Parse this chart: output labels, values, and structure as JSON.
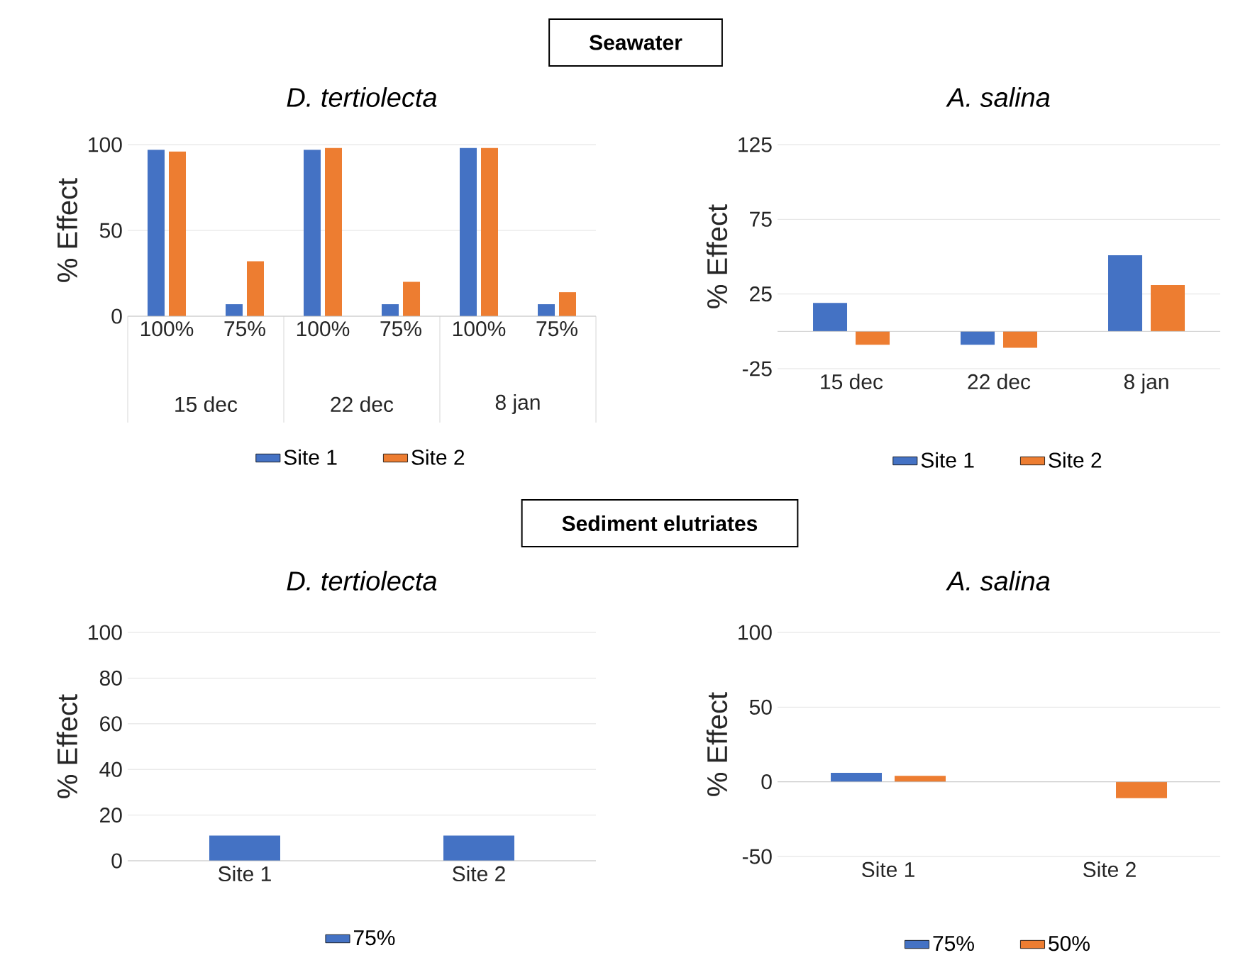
{
  "chart_data": [
    {
      "type": "other",
      "title": "Seawater"
    },
    {
      "type": "bar",
      "title": "D. tertiolecta",
      "ylabel": "% Effect",
      "categories": [
        "100%",
        "75%",
        "100%",
        "75%",
        "100%",
        "75%"
      ],
      "annotations": [
        "15 dec",
        "22 dec",
        "8 jan"
      ],
      "series": [
        {
          "name": "Site 1",
          "color": "#4472c4",
          "values": [
            97,
            7,
            97,
            7,
            98,
            7
          ]
        },
        {
          "name": "Site 2",
          "color": "#ed7d31",
          "values": [
            96,
            32,
            98,
            20,
            98,
            14
          ]
        }
      ],
      "ylim": [
        0,
        100
      ],
      "yticks": [
        0,
        50,
        100
      ],
      "grid": "y",
      "legend": "bottom"
    },
    {
      "type": "bar",
      "title": "A. salina",
      "ylabel": "% Effect",
      "categories": [
        "15 dec",
        "22 dec",
        "8 jan"
      ],
      "series": [
        {
          "name": "Site 1",
          "color": "#4472c4",
          "values": [
            19,
            -9,
            51
          ]
        },
        {
          "name": "Site 2",
          "color": "#ed7d31",
          "values": [
            -9,
            -11,
            31
          ]
        }
      ],
      "ylim": [
        -25,
        125
      ],
      "yticks": [
        -25,
        25,
        75,
        125
      ],
      "grid": "y",
      "legend": "bottom"
    },
    {
      "type": "other",
      "title": "Sediment elutriates"
    },
    {
      "type": "bar",
      "title": "D. tertiolecta",
      "ylabel": "% Effect",
      "categories": [
        "Site 1",
        "Site 2"
      ],
      "series": [
        {
          "name": "75%",
          "color": "#4472c4",
          "values": [
            11,
            11
          ]
        }
      ],
      "ylim": [
        0,
        100
      ],
      "yticks": [
        0,
        20,
        40,
        60,
        80,
        100
      ],
      "grid": "y",
      "legend": "bottom"
    },
    {
      "type": "bar",
      "title": "A. salina",
      "ylabel": "% Effect",
      "categories": [
        "Site 1",
        "Site 2"
      ],
      "series": [
        {
          "name": "75%",
          "color": "#4472c4",
          "values": [
            6,
            null
          ]
        },
        {
          "name": "50%",
          "color": "#ed7d31",
          "values": [
            4,
            -11
          ]
        }
      ],
      "ylim": [
        -50,
        100
      ],
      "yticks": [
        -50,
        0,
        50,
        100
      ],
      "grid": "y",
      "legend": "bottom"
    }
  ]
}
